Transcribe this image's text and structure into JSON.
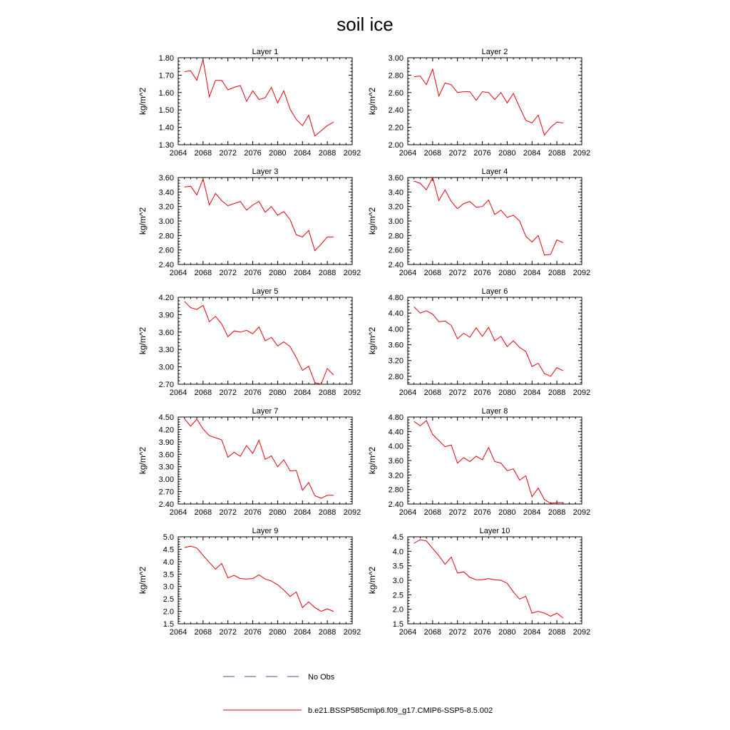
{
  "title": "soil ice",
  "legend": {
    "obs_label": "No Obs",
    "obs_color": "#4a4aa8",
    "model_label": "b.e21.BSSP585cmip6.f09_g17.CMIP6-SSP5-8.5.002",
    "model_color": "#e8000b"
  },
  "chart_data": [
    {
      "type": "line",
      "title": "Layer 1",
      "ylabel": "kg/m^2",
      "xlim": [
        2064,
        2092
      ],
      "xticks": [
        "2064",
        "2068",
        "2072",
        "2076",
        "2080",
        "2084",
        "2088",
        "2092"
      ],
      "ylim": [
        1.3,
        1.8
      ],
      "yticks": [
        "1.30",
        "1.40",
        "1.50",
        "1.60",
        "1.70",
        "1.80"
      ],
      "x": [
        2065,
        2066,
        2067,
        2068,
        2069,
        2070,
        2071,
        2072,
        2073,
        2074,
        2075,
        2076,
        2077,
        2078,
        2079,
        2080,
        2081,
        2082,
        2083,
        2084,
        2085,
        2086,
        2087,
        2088,
        2089
      ],
      "series": [
        {
          "name": "b.e21.BSSP585cmip6.f09_g17.CMIP6-SSP5-8.5.002",
          "values": [
            1.72,
            1.725,
            1.67,
            1.79,
            1.575,
            1.67,
            1.67,
            1.615,
            1.63,
            1.64,
            1.55,
            1.61,
            1.56,
            1.57,
            1.63,
            1.54,
            1.61,
            1.505,
            1.445,
            1.41,
            1.47,
            1.35,
            1.38,
            1.41,
            1.43
          ]
        }
      ]
    },
    {
      "type": "line",
      "title": "Layer 2",
      "ylabel": "kg/m^2",
      "xlim": [
        2064,
        2092
      ],
      "xticks": [
        "2064",
        "2068",
        "2072",
        "2076",
        "2080",
        "2084",
        "2088",
        "2092"
      ],
      "ylim": [
        2.0,
        3.0
      ],
      "yticks": [
        "2.00",
        "2.20",
        "2.40",
        "2.60",
        "2.80",
        "3.00"
      ],
      "x": [
        2065,
        2066,
        2067,
        2068,
        2069,
        2070,
        2071,
        2072,
        2073,
        2074,
        2075,
        2076,
        2077,
        2078,
        2079,
        2080,
        2081,
        2082,
        2083,
        2084,
        2085,
        2086,
        2087,
        2088,
        2089
      ],
      "series": [
        {
          "name": "b.e21.BSSP585cmip6.f09_g17.CMIP6-SSP5-8.5.002",
          "values": [
            2.78,
            2.79,
            2.69,
            2.87,
            2.56,
            2.71,
            2.69,
            2.6,
            2.61,
            2.61,
            2.51,
            2.61,
            2.6,
            2.52,
            2.6,
            2.48,
            2.59,
            2.43,
            2.28,
            2.25,
            2.34,
            2.11,
            2.2,
            2.26,
            2.25
          ]
        }
      ]
    },
    {
      "type": "line",
      "title": "Layer 3",
      "ylabel": "kg/m^2",
      "xlim": [
        2064,
        2092
      ],
      "xticks": [
        "2064",
        "2068",
        "2072",
        "2076",
        "2080",
        "2084",
        "2088",
        "2092"
      ],
      "ylim": [
        2.4,
        3.6
      ],
      "yticks": [
        "2.40",
        "2.60",
        "2.80",
        "3.00",
        "3.20",
        "3.40",
        "3.60"
      ],
      "x": [
        2065,
        2066,
        2067,
        2068,
        2069,
        2070,
        2071,
        2072,
        2073,
        2074,
        2075,
        2076,
        2077,
        2078,
        2079,
        2080,
        2081,
        2082,
        2083,
        2084,
        2085,
        2086,
        2087,
        2088,
        2089
      ],
      "series": [
        {
          "name": "b.e21.BSSP585cmip6.f09_g17.CMIP6-SSP5-8.5.002",
          "values": [
            3.47,
            3.48,
            3.36,
            3.58,
            3.22,
            3.38,
            3.28,
            3.21,
            3.24,
            3.27,
            3.15,
            3.22,
            3.27,
            3.12,
            3.2,
            3.08,
            3.13,
            3.02,
            2.81,
            2.78,
            2.87,
            2.59,
            2.68,
            2.78,
            2.78
          ]
        }
      ]
    },
    {
      "type": "line",
      "title": "Layer 4",
      "ylabel": "kg/m^2",
      "xlim": [
        2064,
        2092
      ],
      "xticks": [
        "2064",
        "2068",
        "2072",
        "2076",
        "2080",
        "2084",
        "2088",
        "2092"
      ],
      "ylim": [
        2.4,
        3.6
      ],
      "yticks": [
        "2.40",
        "2.60",
        "2.80",
        "3.00",
        "3.20",
        "3.40",
        "3.60"
      ],
      "x": [
        2065,
        2066,
        2067,
        2068,
        2069,
        2070,
        2071,
        2072,
        2073,
        2074,
        2075,
        2076,
        2077,
        2078,
        2079,
        2080,
        2081,
        2082,
        2083,
        2084,
        2085,
        2086,
        2087,
        2088,
        2089
      ],
      "series": [
        {
          "name": "b.e21.BSSP585cmip6.f09_g17.CMIP6-SSP5-8.5.002",
          "values": [
            3.55,
            3.52,
            3.43,
            3.6,
            3.28,
            3.43,
            3.27,
            3.17,
            3.24,
            3.27,
            3.19,
            3.2,
            3.29,
            3.09,
            3.15,
            3.05,
            3.08,
            3.0,
            2.79,
            2.71,
            2.8,
            2.53,
            2.54,
            2.74,
            2.7
          ]
        }
      ]
    },
    {
      "type": "line",
      "title": "Layer 5",
      "ylabel": "kg/m^2",
      "xlim": [
        2064,
        2092
      ],
      "xticks": [
        "2064",
        "2068",
        "2072",
        "2076",
        "2080",
        "2084",
        "2088",
        "2092"
      ],
      "ylim": [
        2.7,
        4.2
      ],
      "yticks": [
        "2.70",
        "3.00",
        "3.30",
        "3.60",
        "3.90",
        "4.20"
      ],
      "x": [
        2065,
        2066,
        2067,
        2068,
        2069,
        2070,
        2071,
        2072,
        2073,
        2074,
        2075,
        2076,
        2077,
        2078,
        2079,
        2080,
        2081,
        2082,
        2083,
        2084,
        2085,
        2086,
        2087,
        2088,
        2089
      ],
      "series": [
        {
          "name": "b.e21.BSSP585cmip6.f09_g17.CMIP6-SSP5-8.5.002",
          "values": [
            4.13,
            4.02,
            3.99,
            4.06,
            3.78,
            3.87,
            3.74,
            3.52,
            3.62,
            3.6,
            3.63,
            3.57,
            3.69,
            3.45,
            3.51,
            3.36,
            3.43,
            3.35,
            3.16,
            2.94,
            3.01,
            2.73,
            2.7,
            2.97,
            2.86
          ]
        }
      ]
    },
    {
      "type": "line",
      "title": "Layer 6",
      "ylabel": "kg/m^2",
      "xlim": [
        2064,
        2092
      ],
      "xticks": [
        "2064",
        "2068",
        "2072",
        "2076",
        "2080",
        "2084",
        "2088",
        "2092"
      ],
      "ylim": [
        2.6,
        4.8
      ],
      "yticks": [
        "2.80",
        "3.20",
        "3.60",
        "4.00",
        "4.40",
        "4.80"
      ],
      "x": [
        2065,
        2066,
        2067,
        2068,
        2069,
        2070,
        2071,
        2072,
        2073,
        2074,
        2075,
        2076,
        2077,
        2078,
        2079,
        2080,
        2081,
        2082,
        2083,
        2084,
        2085,
        2086,
        2087,
        2088,
        2089
      ],
      "series": [
        {
          "name": "b.e21.BSSP585cmip6.f09_g17.CMIP6-SSP5-8.5.002",
          "values": [
            4.56,
            4.4,
            4.46,
            4.37,
            4.18,
            4.2,
            4.09,
            3.75,
            3.89,
            3.79,
            4.03,
            3.81,
            4.04,
            3.7,
            3.81,
            3.55,
            3.7,
            3.53,
            3.43,
            3.05,
            3.13,
            2.87,
            2.8,
            3.02,
            2.94
          ]
        }
      ]
    },
    {
      "type": "line",
      "title": "Layer 7",
      "ylabel": "kg/m^2",
      "xlim": [
        2064,
        2092
      ],
      "xticks": [
        "2064",
        "2068",
        "2072",
        "2076",
        "2080",
        "2084",
        "2088",
        "2092"
      ],
      "ylim": [
        2.4,
        4.5
      ],
      "yticks": [
        "2.40",
        "2.70",
        "3.00",
        "3.30",
        "3.60",
        "3.90",
        "4.20",
        "4.50"
      ],
      "x": [
        2065,
        2066,
        2067,
        2068,
        2069,
        2070,
        2071,
        2072,
        2073,
        2074,
        2075,
        2076,
        2077,
        2078,
        2079,
        2080,
        2081,
        2082,
        2083,
        2084,
        2085,
        2086,
        2087,
        2088,
        2089
      ],
      "series": [
        {
          "name": "b.e21.BSSP585cmip6.f09_g17.CMIP6-SSP5-8.5.002",
          "values": [
            4.46,
            4.28,
            4.45,
            4.21,
            4.05,
            4.0,
            3.95,
            3.53,
            3.65,
            3.55,
            3.81,
            3.62,
            3.94,
            3.48,
            3.56,
            3.3,
            3.47,
            3.2,
            3.21,
            2.73,
            2.92,
            2.6,
            2.54,
            2.61,
            2.61
          ]
        }
      ]
    },
    {
      "type": "line",
      "title": "Layer 8",
      "ylabel": "kg/m^2",
      "xlim": [
        2064,
        2092
      ],
      "xticks": [
        "2064",
        "2068",
        "2072",
        "2076",
        "2080",
        "2084",
        "2088",
        "2092"
      ],
      "ylim": [
        2.4,
        4.8
      ],
      "yticks": [
        "2.40",
        "2.80",
        "3.20",
        "3.60",
        "4.00",
        "4.40",
        "4.80"
      ],
      "x": [
        2065,
        2066,
        2067,
        2068,
        2069,
        2070,
        2071,
        2072,
        2073,
        2074,
        2075,
        2076,
        2077,
        2078,
        2079,
        2080,
        2081,
        2082,
        2083,
        2084,
        2085,
        2086,
        2087,
        2088,
        2089
      ],
      "series": [
        {
          "name": "b.e21.BSSP585cmip6.f09_g17.CMIP6-SSP5-8.5.002",
          "values": [
            4.68,
            4.56,
            4.7,
            4.32,
            4.15,
            3.98,
            4.03,
            3.53,
            3.68,
            3.57,
            3.72,
            3.62,
            3.96,
            3.57,
            3.53,
            3.32,
            3.37,
            3.06,
            3.18,
            2.6,
            2.84,
            2.52,
            2.42,
            2.44,
            2.44
          ]
        }
      ]
    },
    {
      "type": "line",
      "title": "Layer 9",
      "ylabel": "kg/m^2",
      "xlim": [
        2064,
        2092
      ],
      "xticks": [
        "2064",
        "2068",
        "2072",
        "2076",
        "2080",
        "2084",
        "2088",
        "2092"
      ],
      "ylim": [
        1.5,
        5.0
      ],
      "yticks": [
        "1.5",
        "2.0",
        "2.5",
        "3.0",
        "3.5",
        "4.0",
        "4.5",
        "5.0"
      ],
      "x": [
        2065,
        2066,
        2067,
        2068,
        2069,
        2070,
        2071,
        2072,
        2073,
        2074,
        2075,
        2076,
        2077,
        2078,
        2079,
        2080,
        2081,
        2082,
        2083,
        2084,
        2085,
        2086,
        2087,
        2088,
        2089
      ],
      "series": [
        {
          "name": "b.e21.BSSP585cmip6.f09_g17.CMIP6-SSP5-8.5.002",
          "values": [
            4.57,
            4.62,
            4.55,
            4.25,
            3.97,
            3.7,
            3.93,
            3.35,
            3.45,
            3.32,
            3.3,
            3.32,
            3.47,
            3.3,
            3.22,
            3.07,
            2.86,
            2.6,
            2.78,
            2.15,
            2.38,
            2.15,
            2.0,
            2.1,
            2.0
          ]
        }
      ]
    },
    {
      "type": "line",
      "title": "Layer 10",
      "ylabel": "kg/m^2",
      "xlim": [
        2064,
        2092
      ],
      "xticks": [
        "2064",
        "2068",
        "2072",
        "2076",
        "2080",
        "2084",
        "2088",
        "2092"
      ],
      "ylim": [
        1.5,
        4.5
      ],
      "yticks": [
        "1.5",
        "2.0",
        "2.5",
        "3.0",
        "3.5",
        "4.0",
        "4.5"
      ],
      "x": [
        2065,
        2066,
        2067,
        2068,
        2069,
        2070,
        2071,
        2072,
        2073,
        2074,
        2075,
        2076,
        2077,
        2078,
        2079,
        2080,
        2081,
        2082,
        2083,
        2084,
        2085,
        2086,
        2087,
        2088,
        2089
      ],
      "series": [
        {
          "name": "b.e21.BSSP585cmip6.f09_g17.CMIP6-SSP5-8.5.002",
          "values": [
            4.28,
            4.4,
            4.36,
            4.1,
            3.85,
            3.55,
            3.8,
            3.25,
            3.29,
            3.1,
            3.02,
            3.02,
            3.06,
            3.02,
            3.0,
            2.9,
            2.6,
            2.35,
            2.45,
            1.87,
            1.93,
            1.87,
            1.76,
            1.87,
            1.7
          ]
        }
      ]
    }
  ]
}
